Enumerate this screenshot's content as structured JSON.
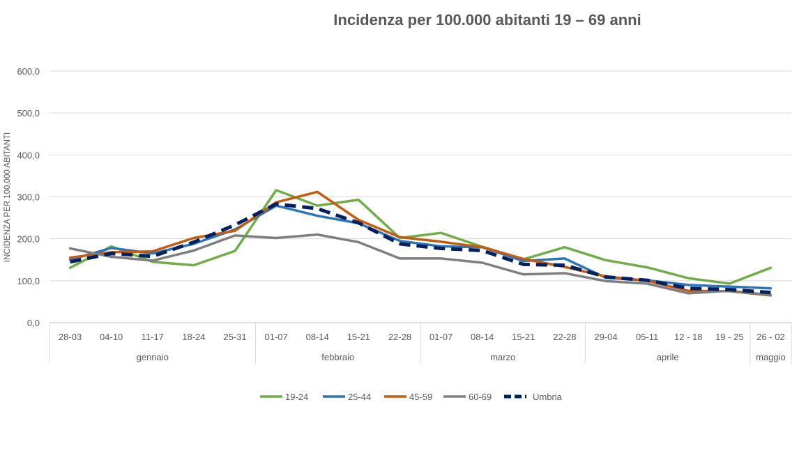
{
  "chart_data": {
    "type": "line",
    "title": "Incidenza per 100.000 abitanti 19 – 69 anni",
    "ylabel": "INCIDENZA PER 100,000 ABITANTI",
    "xlabel": "",
    "ylim": [
      0,
      600
    ],
    "yticks": [
      "0,0",
      "100,0",
      "200,0",
      "300,0",
      "400,0",
      "500,0",
      "600,0"
    ],
    "grid": true,
    "legend_position": "bottom",
    "categories": [
      "28-03",
      "04-10",
      "11-17",
      "18-24",
      "25-31",
      "01-07",
      "08-14",
      "15-21",
      "22-28",
      "01-07",
      "08-14",
      "15-21",
      "22-28",
      "29-04",
      "05-11",
      "12 - 18",
      "19 - 25",
      "26 - 02"
    ],
    "groups": [
      {
        "label": "gennaio",
        "span": 5
      },
      {
        "label": "febbraio",
        "span": 4
      },
      {
        "label": "marzo",
        "span": 4
      },
      {
        "label": "aprile",
        "span": 4
      },
      {
        "label": "maggio",
        "span": 1
      }
    ],
    "series": [
      {
        "name": "19-24",
        "color": "#70ad47",
        "dashed": false,
        "values": [
          131,
          182,
          145,
          137,
          171,
          316,
          279,
          293,
          202,
          214,
          181,
          151,
          180,
          149,
          132,
          106,
          93,
          131
        ]
      },
      {
        "name": "25-44",
        "color": "#2e75b6",
        "dashed": false,
        "values": [
          150,
          178,
          165,
          188,
          222,
          279,
          255,
          237,
          195,
          182,
          180,
          147,
          153,
          107,
          101,
          90,
          86,
          82
        ]
      },
      {
        "name": "45-59",
        "color": "#c55a11",
        "dashed": false,
        "values": [
          155,
          168,
          170,
          202,
          219,
          287,
          312,
          245,
          204,
          193,
          180,
          152,
          133,
          110,
          100,
          76,
          75,
          65
        ]
      },
      {
        "name": "60-69",
        "color": "#7f7f7f",
        "dashed": false,
        "values": [
          177,
          157,
          148,
          172,
          208,
          202,
          210,
          192,
          153,
          153,
          143,
          115,
          118,
          99,
          93,
          70,
          76,
          66
        ]
      },
      {
        "name": "Umbria",
        "color": "#002060",
        "dashed": true,
        "values": [
          145,
          165,
          158,
          192,
          233,
          283,
          272,
          238,
          188,
          177,
          172,
          139,
          137,
          109,
          101,
          82,
          79,
          72
        ]
      }
    ]
  }
}
